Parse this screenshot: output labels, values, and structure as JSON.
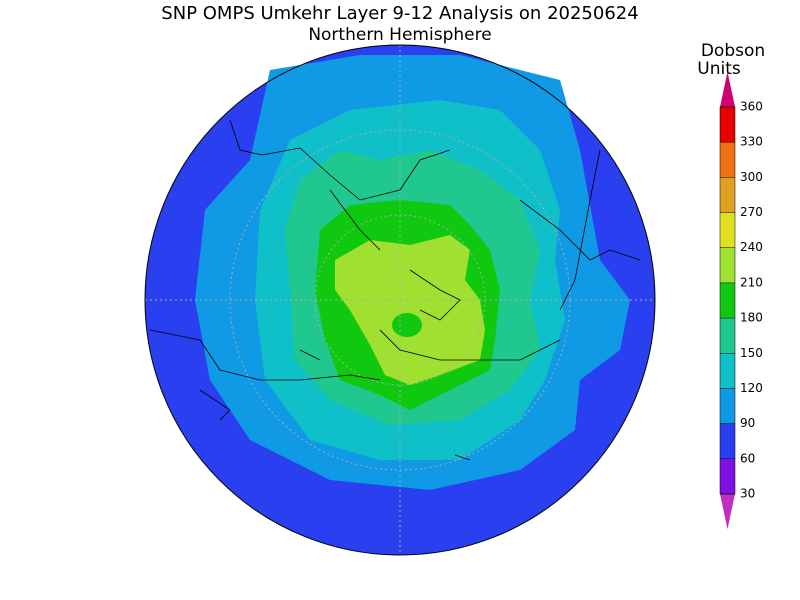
{
  "title": "SNP OMPS Umkehr Layer 9-12 Analysis on 20250624",
  "subtitle": "Northern Hemisphere",
  "colorbar": {
    "title": [
      "Dobson",
      "Units"
    ],
    "ticks": [
      30,
      60,
      90,
      120,
      150,
      180,
      210,
      240,
      270,
      300,
      330,
      360
    ],
    "colors": [
      "#c030c0",
      "#8010e0",
      "#2a40f0",
      "#109ae6",
      "#10c0c8",
      "#20c890",
      "#10c810",
      "#a0e030",
      "#e0e020",
      "#e0a020",
      "#f07010",
      "#e80000",
      "#d00070"
    ]
  }
}
